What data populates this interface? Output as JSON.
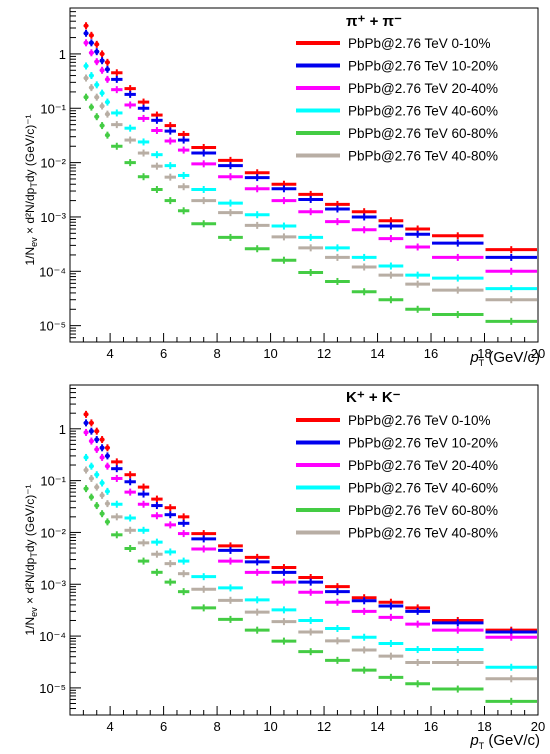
{
  "chart_data": [
    {
      "type": "scatter",
      "title": "π⁺ + π⁻",
      "xlabel": "p_T (GeV/c)",
      "ylabel": "1/N_ev × d²N/dp_T dy (GeV/c)⁻¹",
      "xlim": [
        2.5,
        20
      ],
      "ylim": [
        5e-06,
        7
      ],
      "log_y": true,
      "grid": false,
      "legend_position": "top-right",
      "x_ticks": [
        4,
        6,
        8,
        10,
        12,
        14,
        16,
        18,
        20
      ],
      "y_ticks": [
        {
          "value": 1,
          "label": "1"
        },
        {
          "value": 0.1,
          "label": "10⁻¹"
        },
        {
          "value": 0.01,
          "label": "10⁻²"
        },
        {
          "value": 0.001,
          "label": "10⁻³"
        },
        {
          "value": 0.0001,
          "label": "10⁻⁴"
        },
        {
          "value": 1e-05,
          "label": "10⁻⁵"
        }
      ],
      "x_bins": [
        [
          3.0,
          3.2
        ],
        [
          3.2,
          3.4
        ],
        [
          3.4,
          3.6
        ],
        [
          3.6,
          3.8
        ],
        [
          3.8,
          4.0
        ],
        [
          4.0,
          4.5
        ],
        [
          4.5,
          5.0
        ],
        [
          5.0,
          5.5
        ],
        [
          5.5,
          6.0
        ],
        [
          6.0,
          6.5
        ],
        [
          6.5,
          7.0
        ],
        [
          7.0,
          8.0
        ],
        [
          8.0,
          9.0
        ],
        [
          9.0,
          10.0
        ],
        [
          10.0,
          11.0
        ],
        [
          11.0,
          12.0
        ],
        [
          12.0,
          13.0
        ],
        [
          13.0,
          14.0
        ],
        [
          14.0,
          15.0
        ],
        [
          15.0,
          16.0
        ],
        [
          16.0,
          18.0
        ],
        [
          18.0,
          20.0
        ]
      ],
      "series": [
        {
          "name": "PbPb@2.76 TeV 0-10%",
          "color": "#ff0000",
          "values": [
            3.3,
            2.2,
            1.5,
            1.0,
            0.7,
            0.45,
            0.23,
            0.13,
            0.075,
            0.048,
            0.033,
            0.019,
            0.011,
            0.0065,
            0.004,
            0.0026,
            0.0017,
            0.00125,
            0.00085,
            0.0006,
            0.00045,
            0.00025
          ]
        },
        {
          "name": "PbPb@2.76 TeV 10-20%",
          "color": "#0000ee",
          "values": [
            2.4,
            1.6,
            1.1,
            0.75,
            0.52,
            0.34,
            0.18,
            0.1,
            0.06,
            0.038,
            0.026,
            0.015,
            0.0088,
            0.0053,
            0.0033,
            0.0021,
            0.0014,
            0.001,
            0.00068,
            0.00048,
            0.00033,
            0.00018
          ]
        },
        {
          "name": "PbPb@2.76 TeV 20-40%",
          "color": "#ff00ff",
          "values": [
            1.6,
            1.05,
            0.72,
            0.5,
            0.34,
            0.22,
            0.115,
            0.065,
            0.039,
            0.025,
            0.017,
            0.0095,
            0.0055,
            0.0033,
            0.002,
            0.00125,
            0.00082,
            0.00058,
            0.0004,
            0.00028,
            0.00018,
            0.0001
          ]
        },
        {
          "name": "PbPb@2.76 TeV 40-60%",
          "color": "#00ffff",
          "values": [
            0.6,
            0.4,
            0.27,
            0.19,
            0.13,
            0.082,
            0.043,
            0.024,
            0.014,
            0.0088,
            0.0058,
            0.0032,
            0.0018,
            0.0011,
            0.00068,
            0.00042,
            0.00027,
            0.00018,
            0.000125,
            8.5e-05,
            7.5e-05,
            4.8e-05
          ]
        },
        {
          "name": "PbPb@2.76 TeV 60-80%",
          "color": "#44cc44",
          "values": [
            0.16,
            0.105,
            0.07,
            0.048,
            0.032,
            0.02,
            0.01,
            0.0055,
            0.0032,
            0.002,
            0.0013,
            0.00075,
            0.00042,
            0.00026,
            0.00016,
            9.5e-05,
            6.5e-05,
            4.2e-05,
            3e-05,
            2e-05,
            1.6e-05,
            1.2e-05
          ]
        },
        {
          "name": "PbPb@2.76 TeV 40-80%",
          "color": "#b8aea4",
          "values": [
            0.36,
            0.24,
            0.16,
            0.11,
            0.078,
            0.05,
            0.026,
            0.015,
            0.0086,
            0.0054,
            0.0036,
            0.002,
            0.0012,
            0.0007,
            0.00043,
            0.00027,
            0.00018,
            0.00012,
            8.5e-05,
            5.8e-05,
            4.5e-05,
            3e-05
          ]
        }
      ]
    },
    {
      "type": "scatter",
      "title": "K⁺ + K⁻",
      "xlabel": "p_T (GeV/c)",
      "ylabel": "1/N_ev × d²N/dp_T dy (GeV/c)⁻¹",
      "xlim": [
        2.5,
        20
      ],
      "ylim": [
        3e-06,
        7
      ],
      "log_y": true,
      "grid": false,
      "legend_position": "top-right",
      "x_ticks": [
        4,
        6,
        8,
        10,
        12,
        14,
        16,
        18,
        20
      ],
      "y_ticks": [
        {
          "value": 1,
          "label": "1"
        },
        {
          "value": 0.1,
          "label": "10⁻¹"
        },
        {
          "value": 0.01,
          "label": "10⁻²"
        },
        {
          "value": 0.001,
          "label": "10⁻³"
        },
        {
          "value": 0.0001,
          "label": "10⁻⁴"
        },
        {
          "value": 1e-05,
          "label": "10⁻⁵"
        }
      ],
      "x_bins": [
        [
          3.0,
          3.2
        ],
        [
          3.2,
          3.4
        ],
        [
          3.4,
          3.6
        ],
        [
          3.6,
          3.8
        ],
        [
          3.8,
          4.0
        ],
        [
          4.0,
          4.5
        ],
        [
          4.5,
          5.0
        ],
        [
          5.0,
          5.5
        ],
        [
          5.5,
          6.0
        ],
        [
          6.0,
          6.5
        ],
        [
          6.5,
          7.0
        ],
        [
          7.0,
          8.0
        ],
        [
          8.0,
          9.0
        ],
        [
          9.0,
          10.0
        ],
        [
          10.0,
          11.0
        ],
        [
          11.0,
          12.0
        ],
        [
          12.0,
          13.0
        ],
        [
          13.0,
          14.0
        ],
        [
          14.0,
          15.0
        ],
        [
          15.0,
          16.0
        ],
        [
          16.0,
          18.0
        ],
        [
          18.0,
          20.0
        ]
      ],
      "series": [
        {
          "name": "PbPb@2.76 TeV 0-10%",
          "color": "#ff0000",
          "values": [
            1.9,
            1.3,
            0.9,
            0.62,
            0.43,
            0.23,
            0.13,
            0.075,
            0.044,
            0.03,
            0.02,
            0.0095,
            0.0055,
            0.0033,
            0.0021,
            0.00135,
            0.0009,
            0.00055,
            0.00045,
            0.00035,
            0.0002,
            0.00013
          ]
        },
        {
          "name": "PbPb@2.76 TeV 10-20%",
          "color": "#0000ee",
          "values": [
            1.3,
            0.9,
            0.62,
            0.43,
            0.3,
            0.17,
            0.095,
            0.055,
            0.033,
            0.022,
            0.015,
            0.0075,
            0.0045,
            0.0027,
            0.0017,
            0.0011,
            0.00072,
            0.00048,
            0.00038,
            0.0003,
            0.00018,
            0.00012
          ]
        },
        {
          "name": "PbPb@2.76 TeV 20-40%",
          "color": "#ff00ff",
          "values": [
            0.85,
            0.58,
            0.4,
            0.28,
            0.19,
            0.11,
            0.06,
            0.035,
            0.021,
            0.014,
            0.0095,
            0.0048,
            0.0028,
            0.0017,
            0.0011,
            0.0007,
            0.00045,
            0.0003,
            0.00023,
            0.00017,
            0.00013,
            9.5e-05
          ]
        },
        {
          "name": "PbPb@2.76 TeV 40-60%",
          "color": "#00ffff",
          "values": [
            0.28,
            0.19,
            0.13,
            0.09,
            0.062,
            0.035,
            0.019,
            0.011,
            0.0065,
            0.0042,
            0.0028,
            0.0014,
            0.00085,
            0.0005,
            0.00032,
            0.0002,
            0.00014,
            9.5e-05,
            7.2e-05,
            5.5e-05,
            5.5e-05,
            2.5e-05
          ]
        },
        {
          "name": "PbPb@2.76 TeV 60-80%",
          "color": "#44cc44",
          "values": [
            0.07,
            0.048,
            0.033,
            0.023,
            0.016,
            0.009,
            0.0049,
            0.0028,
            0.0017,
            0.0011,
            0.00072,
            0.00035,
            0.00021,
            0.00013,
            8e-05,
            5e-05,
            3.4e-05,
            2.2e-05,
            1.6e-05,
            1.2e-05,
            9.5e-06,
            5.5e-06
          ]
        },
        {
          "name": "PbPb@2.76 TeV 40-80%",
          "color": "#b8aea4",
          "values": [
            0.16,
            0.11,
            0.075,
            0.052,
            0.036,
            0.02,
            0.011,
            0.0063,
            0.0038,
            0.0025,
            0.0016,
            0.0008,
            0.00049,
            0.00029,
            0.00019,
            0.00012,
            8.1e-05,
            5.4e-05,
            4.1e-05,
            3.1e-05,
            3.1e-05,
            1.5e-05
          ]
        }
      ]
    }
  ]
}
